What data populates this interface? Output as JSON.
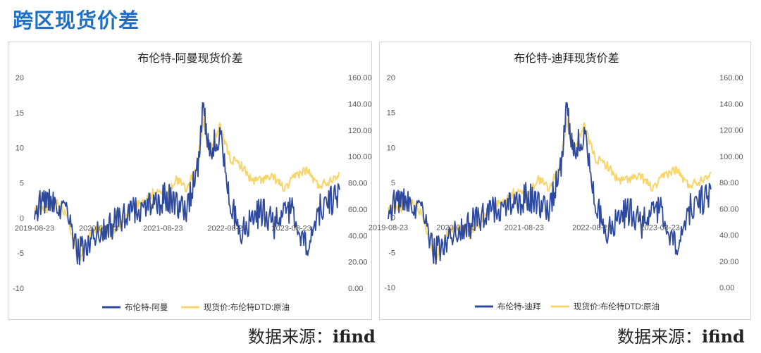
{
  "page": {
    "title": "跨区现货价差",
    "source_label": "数据来源：",
    "source_name": "ifind"
  },
  "chart_data": [
    {
      "type": "line",
      "title": "布伦特-阿曼现货价差",
      "x_ticks": [
        "2019-08-23",
        "2020-08-23",
        "2021-08-23",
        "2022-08-23",
        "2023-08-23"
      ],
      "y_left": {
        "ticks": [
          "20",
          "15",
          "10",
          "5",
          "0",
          "-5",
          "-10"
        ],
        "range": [
          -10,
          20
        ]
      },
      "y_right": {
        "ticks": [
          "160.00",
          "140.00",
          "120.00",
          "100.00",
          "80.00",
          "60.00",
          "40.00",
          "20.00",
          "0.00"
        ],
        "range": [
          0,
          160
        ]
      },
      "grid": false,
      "legend_position": "bottom",
      "series": [
        {
          "name": "布伦特-阿曼",
          "axis": "left",
          "color": "#2e4a9e",
          "x": [
            "2019-08",
            "2019-10",
            "2019-12",
            "2020-02",
            "2020-04",
            "2020-06",
            "2020-08",
            "2020-10",
            "2020-12",
            "2021-02",
            "2021-04",
            "2021-06",
            "2021-08",
            "2021-10",
            "2021-12",
            "2022-02",
            "2022-03",
            "2022-04",
            "2022-06",
            "2022-08",
            "2022-10",
            "2022-12",
            "2023-02",
            "2023-04",
            "2023-06",
            "2023-08",
            "2023-10",
            "2023-12",
            "2024-02",
            "2024-04"
          ],
          "values": [
            1,
            3,
            1,
            0.5,
            -5,
            -3,
            -2,
            -1,
            0,
            1,
            2,
            2,
            3,
            2,
            1,
            8,
            16,
            9,
            12,
            2,
            -2,
            0,
            1,
            -1,
            2,
            0,
            -5,
            1,
            2,
            4
          ]
        },
        {
          "name": "现货价:布伦特DTD:原油",
          "axis": "right",
          "color": "#f7d56a",
          "x": [
            "2019-08",
            "2019-10",
            "2019-12",
            "2020-02",
            "2020-04",
            "2020-06",
            "2020-08",
            "2020-10",
            "2020-12",
            "2021-02",
            "2021-04",
            "2021-06",
            "2021-08",
            "2021-10",
            "2021-12",
            "2022-02",
            "2022-03",
            "2022-04",
            "2022-06",
            "2022-08",
            "2022-10",
            "2022-12",
            "2023-02",
            "2023-04",
            "2023-06",
            "2023-08",
            "2023-10",
            "2023-12",
            "2024-02",
            "2024-04"
          ],
          "values": [
            60,
            60,
            66,
            56,
            20,
            41,
            45,
            40,
            50,
            62,
            65,
            73,
            70,
            83,
            75,
            96,
            128,
            105,
            122,
            98,
            93,
            81,
            83,
            84,
            75,
            86,
            90,
            78,
            81,
            88
          ]
        }
      ]
    },
    {
      "type": "line",
      "title": "布伦特-迪拜现货价差",
      "x_ticks": [
        "2019-08-23",
        "2020-08-23",
        "2021-08-23",
        "2022-08-23",
        "2023-08-23"
      ],
      "y_left": {
        "ticks": [
          "20",
          "15",
          "10",
          "5",
          "0",
          "-5",
          "-10"
        ],
        "range": [
          -10,
          20
        ]
      },
      "y_right": {
        "ticks": [
          "160.00",
          "140.00",
          "120.00",
          "100.00",
          "80.00",
          "60.00",
          "40.00",
          "20.00",
          "0.00"
        ],
        "range": [
          0,
          160
        ]
      },
      "grid": false,
      "legend_position": "bottom",
      "series": [
        {
          "name": "布伦特-迪拜",
          "axis": "left",
          "color": "#2e4a9e",
          "x": [
            "2019-08",
            "2019-10",
            "2019-12",
            "2020-02",
            "2020-04",
            "2020-06",
            "2020-08",
            "2020-10",
            "2020-12",
            "2021-02",
            "2021-04",
            "2021-06",
            "2021-08",
            "2021-10",
            "2021-12",
            "2022-02",
            "2022-03",
            "2022-04",
            "2022-06",
            "2022-08",
            "2022-10",
            "2022-12",
            "2023-02",
            "2023-04",
            "2023-06",
            "2023-08",
            "2023-10",
            "2023-12",
            "2024-02",
            "2024-04"
          ],
          "values": [
            1,
            3,
            1,
            0.5,
            -5,
            -3,
            -2,
            -1,
            0,
            1,
            2,
            2,
            3,
            2,
            1,
            8,
            16,
            9,
            12,
            2,
            -2,
            0,
            1,
            -1,
            2,
            0,
            -5,
            1,
            2,
            4
          ]
        },
        {
          "name": "现货价:布伦特DTD:原油",
          "axis": "right",
          "color": "#f7d56a",
          "x": [
            "2019-08",
            "2019-10",
            "2019-12",
            "2020-02",
            "2020-04",
            "2020-06",
            "2020-08",
            "2020-10",
            "2020-12",
            "2021-02",
            "2021-04",
            "2021-06",
            "2021-08",
            "2021-10",
            "2021-12",
            "2022-02",
            "2022-03",
            "2022-04",
            "2022-06",
            "2022-08",
            "2022-10",
            "2022-12",
            "2023-02",
            "2023-04",
            "2023-06",
            "2023-08",
            "2023-10",
            "2023-12",
            "2024-02",
            "2024-04"
          ],
          "values": [
            60,
            60,
            66,
            56,
            20,
            41,
            45,
            40,
            50,
            62,
            65,
            73,
            70,
            83,
            75,
            96,
            128,
            105,
            122,
            98,
            93,
            81,
            83,
            84,
            75,
            86,
            90,
            78,
            81,
            88
          ]
        }
      ]
    }
  ]
}
